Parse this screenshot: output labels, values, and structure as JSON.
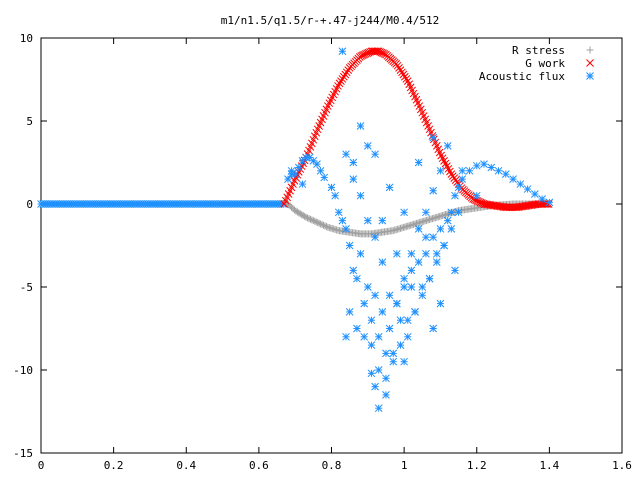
{
  "chart_data": {
    "type": "scatter",
    "title": "m1/n1.5/q1.5/r-+.47-j244/M0.4/512",
    "xlabel": "",
    "ylabel": "",
    "xlim": [
      0,
      1.6
    ],
    "ylim": [
      -15,
      10
    ],
    "x_ticks": [
      "0",
      "0.2",
      "0.4",
      "0.6",
      "0.8",
      "1",
      "1.2",
      "1.4",
      "1.6"
    ],
    "y_ticks": [
      "10",
      "5",
      "0",
      "-5",
      "-10",
      "-15"
    ],
    "grid": false,
    "legend_position": "top-right",
    "series": [
      {
        "name": "R stress",
        "marker": "+",
        "color": "#a0a0a0",
        "x": [
          0.67,
          0.7,
          0.73,
          0.76,
          0.79,
          0.82,
          0.85,
          0.88,
          0.91,
          0.94,
          0.97,
          1.0,
          1.03,
          1.06,
          1.09,
          1.12,
          1.15,
          1.18,
          1.21,
          1.24,
          1.27,
          1.3,
          1.33,
          1.36,
          1.39,
          1.4
        ],
        "y": [
          0.2,
          -0.4,
          -0.8,
          -1.1,
          -1.4,
          -1.6,
          -1.7,
          -1.8,
          -1.8,
          -1.7,
          -1.6,
          -1.4,
          -1.2,
          -1.0,
          -0.8,
          -0.6,
          -0.4,
          -0.3,
          -0.2,
          -0.1,
          -0.05,
          0.0,
          0.0,
          0.0,
          0.0,
          0.0
        ]
      },
      {
        "name": "G work",
        "marker": "x",
        "color": "#ff0000",
        "x": [
          0.67,
          0.7,
          0.73,
          0.76,
          0.79,
          0.82,
          0.85,
          0.88,
          0.91,
          0.93,
          0.95,
          0.98,
          1.01,
          1.04,
          1.07,
          1.1,
          1.13,
          1.16,
          1.19,
          1.22,
          1.25,
          1.28,
          1.31,
          1.34,
          1.37,
          1.4
        ],
        "y": [
          0.0,
          1.5,
          2.8,
          4.4,
          5.9,
          7.2,
          8.2,
          8.9,
          9.2,
          9.2,
          9.0,
          8.4,
          7.4,
          6.0,
          4.5,
          3.0,
          1.8,
          0.9,
          0.3,
          0.0,
          -0.1,
          -0.2,
          -0.2,
          -0.1,
          0.0,
          0.0
        ]
      },
      {
        "name": "Acoustic flux",
        "marker": "*",
        "color": "#1e90ff",
        "x": [
          0.68,
          0.69,
          0.7,
          0.71,
          0.72,
          0.73,
          0.74,
          0.75,
          0.76,
          0.77,
          0.78,
          0.72,
          0.69,
          0.8,
          0.81,
          0.82,
          0.83,
          0.84,
          0.85,
          0.86,
          0.87,
          0.88,
          0.89,
          0.9,
          0.91,
          0.92,
          0.93,
          0.94,
          0.95,
          0.96,
          0.97,
          0.98,
          0.99,
          1.0,
          1.01,
          1.02,
          1.03,
          1.04,
          1.05,
          1.06,
          1.07,
          1.08,
          1.09,
          1.1,
          1.11,
          1.12,
          1.13,
          1.14,
          1.15,
          1.16,
          1.18,
          1.2,
          1.22,
          1.24,
          1.26,
          1.28,
          1.3,
          1.32,
          1.34,
          1.36,
          1.38,
          1.4,
          0.84,
          0.86,
          0.88,
          0.9,
          0.92,
          0.94,
          0.96,
          0.98,
          1.0,
          1.02,
          1.04,
          1.06,
          1.08,
          1.1,
          0.85,
          0.87,
          0.89,
          0.91,
          0.93,
          0.95,
          0.97,
          0.99,
          1.01,
          1.03,
          1.05,
          1.07,
          1.09,
          1.11,
          1.13,
          1.15,
          0.83,
          0.88,
          0.92,
          0.96,
          1.0,
          1.04,
          1.08,
          1.12,
          1.16,
          1.2,
          0.86,
          0.9,
          0.94,
          0.98,
          1.02,
          1.06,
          1.1,
          1.14,
          0.84,
          0.92,
          1.0,
          1.08,
          0.93,
          0.95,
          0.91
        ],
        "y": [
          1.5,
          2.0,
          1.8,
          2.2,
          2.6,
          2.8,
          2.8,
          2.6,
          2.4,
          2.0,
          1.6,
          1.2,
          1.8,
          1.0,
          0.5,
          -0.5,
          -1.0,
          -1.5,
          -2.5,
          -4.0,
          -4.5,
          -3.0,
          -6.0,
          -5.0,
          -7.0,
          -5.5,
          -8.0,
          -6.5,
          -9.0,
          -7.5,
          -9.5,
          -6.0,
          -8.5,
          -5.0,
          -7.0,
          -4.0,
          -6.5,
          -3.5,
          -5.0,
          -3.0,
          -4.5,
          -2.0,
          -3.0,
          -1.5,
          -2.5,
          -1.0,
          -0.5,
          0.5,
          1.0,
          1.5,
          2.0,
          2.3,
          2.4,
          2.2,
          2.0,
          1.8,
          1.5,
          1.2,
          0.9,
          0.6,
          0.3,
          0.1,
          3.0,
          1.5,
          0.5,
          -1.0,
          -2.0,
          -3.5,
          -5.5,
          -6.0,
          -4.5,
          -3.0,
          -1.5,
          -0.5,
          0.8,
          2.0,
          -6.5,
          -7.5,
          -8.0,
          -8.5,
          -10.0,
          -10.5,
          -9.0,
          -7.0,
          -8.0,
          -6.5,
          -5.5,
          -4.5,
          -3.5,
          -2.5,
          -1.5,
          -0.5,
          9.2,
          4.7,
          3.0,
          1.0,
          -0.5,
          2.5,
          4.0,
          3.5,
          2.0,
          0.5,
          2.5,
          3.5,
          -1.0,
          -3.0,
          -5.0,
          -2.0,
          -6.0,
          -4.0,
          -8.0,
          -11.0,
          -9.5,
          -7.5,
          -12.3,
          -11.5,
          -10.2
        ]
      }
    ]
  }
}
